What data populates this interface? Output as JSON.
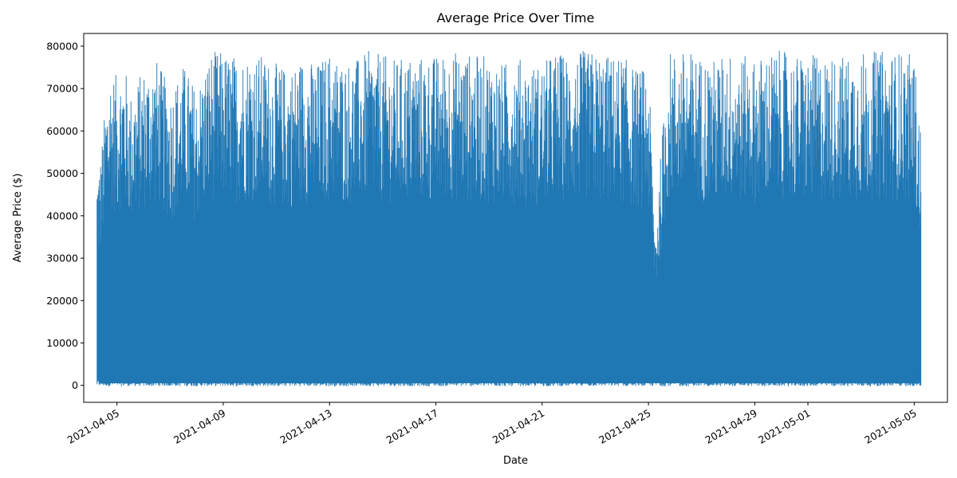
{
  "chart_data": {
    "type": "line",
    "title": "Average Price Over Time",
    "xlabel": "Date",
    "ylabel": "Average Price ($)",
    "color": "#1f77b4",
    "x_range": [
      "2021-04-03T18:00",
      "2021-05-06T06:00"
    ],
    "ylim": [
      -4000,
      83000
    ],
    "y_ticks": [
      0,
      10000,
      20000,
      30000,
      40000,
      50000,
      60000,
      70000,
      80000
    ],
    "x_ticks": [
      "2021-04-05",
      "2021-04-09",
      "2021-04-13",
      "2021-04-17",
      "2021-04-21",
      "2021-04-25",
      "2021-04-29",
      "2021-05-01",
      "2021-05-05"
    ],
    "x_tick_rotation": 30,
    "grid": false,
    "legend": "none",
    "series": [
      {
        "data_start": "2021-04-04T06:00",
        "data_end": "2021-05-05T06:00",
        "y_min": -200,
        "y_max_peak": 79000,
        "density": "dense, oscillating between near 0 and 50000-79000 with many spikes"
      }
    ],
    "peaks": [
      [
        "2021-04-04T06:00",
        52000
      ],
      [
        "2021-04-04T09:00",
        54000
      ],
      [
        "2021-04-04T15:00",
        70000
      ],
      [
        "2021-04-04T18:00",
        75000
      ],
      [
        "2021-04-05T00:00",
        73000
      ],
      [
        "2021-04-05T06:00",
        77000
      ],
      [
        "2021-04-05T12:00",
        69000
      ],
      [
        "2021-04-06T00:00",
        75000
      ],
      [
        "2021-04-06T12:00",
        77000
      ],
      [
        "2021-04-07T00:00",
        70000
      ],
      [
        "2021-04-07T12:00",
        76000
      ],
      [
        "2021-04-08T00:00",
        70000
      ],
      [
        "2021-04-08T12:00",
        79000
      ],
      [
        "2021-04-09T00:00",
        79000
      ],
      [
        "2021-04-09T12:00",
        78000
      ],
      [
        "2021-04-10T00:00",
        79000
      ],
      [
        "2021-04-10T12:00",
        78000
      ],
      [
        "2021-04-11T00:00",
        76000
      ],
      [
        "2021-04-11T12:00",
        75000
      ],
      [
        "2021-04-12T00:00",
        78000
      ],
      [
        "2021-04-12T12:00",
        76000
      ],
      [
        "2021-04-13T00:00",
        79000
      ],
      [
        "2021-04-13T12:00",
        77000
      ],
      [
        "2021-04-14T00:00",
        77000
      ],
      [
        "2021-04-14T12:00",
        79000
      ],
      [
        "2021-04-15T00:00",
        78000
      ],
      [
        "2021-04-15T12:00",
        77000
      ],
      [
        "2021-04-16T00:00",
        78000
      ],
      [
        "2021-04-16T12:00",
        78000
      ],
      [
        "2021-04-17T00:00",
        78000
      ],
      [
        "2021-04-17T12:00",
        79000
      ],
      [
        "2021-04-18T00:00",
        79000
      ],
      [
        "2021-04-18T12:00",
        78000
      ],
      [
        "2021-04-19T00:00",
        78000
      ],
      [
        "2021-04-19T12:00",
        76000
      ],
      [
        "2021-04-20T00:00",
        78000
      ],
      [
        "2021-04-20T12:00",
        76000
      ],
      [
        "2021-04-21T00:00",
        76000
      ],
      [
        "2021-04-21T12:00",
        79000
      ],
      [
        "2021-04-22T00:00",
        78000
      ],
      [
        "2021-04-22T12:00",
        79000
      ],
      [
        "2021-04-23T00:00",
        79000
      ],
      [
        "2021-04-23T12:00",
        78000
      ],
      [
        "2021-04-24T00:00",
        78000
      ],
      [
        "2021-04-24T12:00",
        75000
      ],
      [
        "2021-04-25T00:00",
        75000
      ],
      [
        "2021-04-25T06:00",
        37000
      ],
      [
        "2021-04-25T18:00",
        79000
      ],
      [
        "2021-04-26T12:00",
        79000
      ],
      [
        "2021-04-27T00:00",
        78000
      ],
      [
        "2021-04-27T12:00",
        77000
      ],
      [
        "2021-04-28T00:00",
        79000
      ],
      [
        "2021-04-28T12:00",
        78000
      ],
      [
        "2021-04-29T00:00",
        77000
      ],
      [
        "2021-04-29T12:00",
        79000
      ],
      [
        "2021-04-30T00:00",
        79000
      ],
      [
        "2021-04-30T12:00",
        78000
      ],
      [
        "2021-05-01T00:00",
        78000
      ],
      [
        "2021-05-01T12:00",
        78000
      ],
      [
        "2021-05-02T00:00",
        78000
      ],
      [
        "2021-05-02T12:00",
        78000
      ],
      [
        "2021-05-03T00:00",
        79000
      ],
      [
        "2021-05-03T12:00",
        79000
      ],
      [
        "2021-05-04T00:00",
        79000
      ],
      [
        "2021-05-04T12:00",
        79000
      ],
      [
        "2021-05-05T00:00",
        78000
      ],
      [
        "2021-05-05T06:00",
        60000
      ]
    ]
  }
}
